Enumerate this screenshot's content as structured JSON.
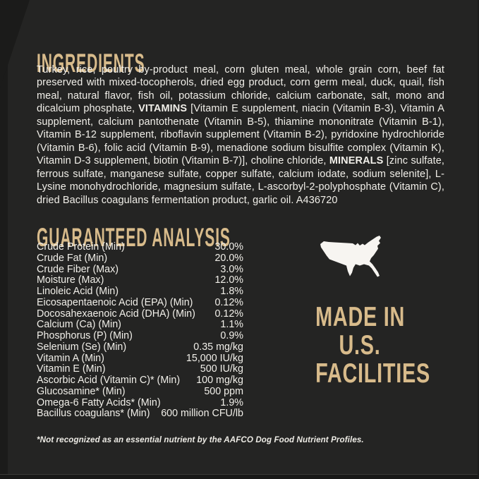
{
  "label": {
    "ingredients": {
      "heading": "INGREDIENTS",
      "segments": [
        {
          "text": "Turkey, rice, poultry by-product meal, corn gluten meal, whole grain corn, beef fat preserved with mixed-tocopherols, dried egg product, corn germ meal, duck, quail, fish meal, natural flavor, fish oil, potassium chloride, calcium carbonate, salt, mono and dicalcium phosphate, ",
          "bold": false
        },
        {
          "text": "VITAMINS",
          "bold": true
        },
        {
          "text": " [Vitamin E supplement, niacin (Vitamin B-3), Vitamin A supplement, calcium pantothenate (Vitamin B-5), thiamine mononitrate (Vitamin B-1), Vitamin B-12 supplement, riboflavin supplement (Vitamin B-2), pyridoxine hydrochloride (Vitamin B-6), folic acid (Vitamin B-9), menadione sodium bisulfite complex (Vitamin K), Vitamin D-3 supplement, biotin (Vitamin B-7)], choline chloride, ",
          "bold": false
        },
        {
          "text": "MINERALS",
          "bold": true
        },
        {
          "text": " [zinc sulfate, ferrous sulfate, manganese sulfate, copper sulfate, calcium iodate, sodium selenite], L-Lysine monohydrochloride, magnesium sulfate, L-ascorbyl-2-polyphosphate (Vitamin C), dried Bacillus coagulans fermentation product, garlic oil. A436720",
          "bold": false
        }
      ]
    },
    "guaranteed_analysis": {
      "heading": "GUARANTEED ANALYSIS",
      "rows": [
        {
          "label": "Crude Protein (Min)",
          "value": "30.0%"
        },
        {
          "label": "Crude Fat (Min)",
          "value": "20.0%"
        },
        {
          "label": "Crude Fiber (Max)",
          "value": "3.0%"
        },
        {
          "label": "Moisture (Max)",
          "value": "12.0%"
        },
        {
          "label": "Linoleic Acid (Min)",
          "value": "1.8%"
        },
        {
          "label": "Eicosapentaenoic Acid (EPA) (Min)",
          "value": "0.12%"
        },
        {
          "label": "Docosahexaenoic Acid (DHA) (Min)",
          "value": "0.12%"
        },
        {
          "label": "Calcium (Ca) (Min)",
          "value": "1.1%"
        },
        {
          "label": "Phosphorus (P) (Min)",
          "value": "0.9%"
        },
        {
          "label": "Selenium (Se) (Min)",
          "value": "0.35 mg/kg"
        },
        {
          "label": "Vitamin A (Min)",
          "value": "15,000 IU/kg"
        },
        {
          "label": "Vitamin E (Min)",
          "value": "500 IU/kg"
        },
        {
          "label": "Ascorbic Acid (Vitamin C)* (Min)",
          "value": "100 mg/kg"
        },
        {
          "label": "Glucosamine* (Min)",
          "value": "500 ppm"
        },
        {
          "label": "Omega-6 Fatty Acids* (Min)",
          "value": "1.9%"
        },
        {
          "label": "Bacillus coagulans* (Min)",
          "value": "600 million CFU/lb"
        }
      ]
    },
    "made_in": {
      "icon": "usa-map-icon",
      "lines": [
        "MADE IN",
        "U.S.",
        "FACILITIES"
      ]
    },
    "footnote": "*Not recognized as an essential nutrient by the AAFCO Dog Food Nutrient Profiles.",
    "colors": {
      "background": "#242423",
      "accent_gold": "#d8bb8b",
      "body_text": "#f1efe9",
      "map_white": "#f7f5f1"
    }
  }
}
